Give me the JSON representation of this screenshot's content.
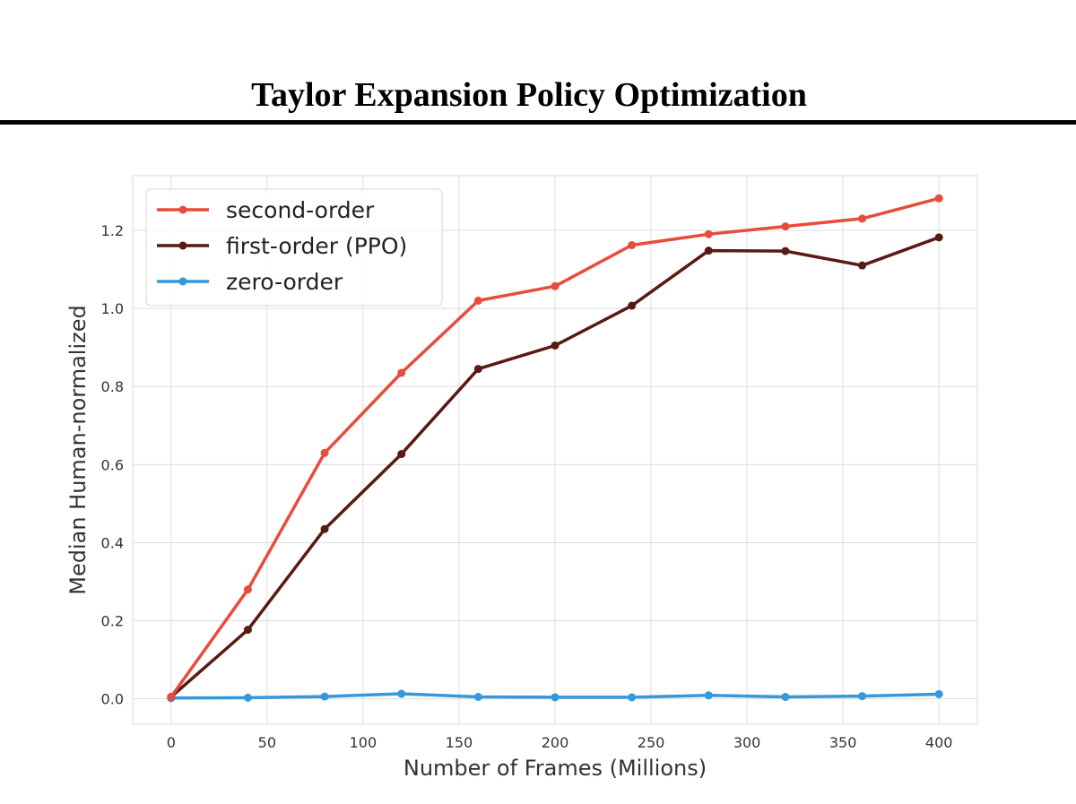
{
  "header": {
    "title": "Taylor Expansion Policy Optimization"
  },
  "chart_data": {
    "type": "line",
    "title": "",
    "xlabel": "Number of Frames (Millions)",
    "ylabel": "Median Human-normalized",
    "x": [
      0,
      40,
      80,
      120,
      160,
      200,
      240,
      280,
      320,
      360,
      400
    ],
    "xlim": [
      -20,
      420
    ],
    "ylim": [
      -0.065,
      1.34
    ],
    "xticks": [
      0,
      50,
      100,
      150,
      200,
      250,
      300,
      350,
      400
    ],
    "xtick_labels": [
      "0",
      "50",
      "100",
      "150",
      "200",
      "250",
      "300",
      "350",
      "400"
    ],
    "yticks": [
      0.0,
      0.2,
      0.4,
      0.6,
      0.8,
      1.0,
      1.2
    ],
    "ytick_labels": [
      "0.0",
      "0.2",
      "0.4",
      "0.6",
      "0.8",
      "1.0",
      "1.2"
    ],
    "grid": true,
    "legend_position": "top-left",
    "series": [
      {
        "name": "second-order",
        "color": "#e74c3c",
        "values": [
          0.005,
          0.28,
          0.63,
          0.835,
          1.02,
          1.057,
          1.162,
          1.19,
          1.21,
          1.23,
          1.282
        ]
      },
      {
        "name": "first-order (PPO)",
        "color": "#5a1a14",
        "values": [
          0.005,
          0.177,
          0.435,
          0.627,
          0.845,
          0.905,
          1.007,
          1.148,
          1.147,
          1.11,
          1.182
        ]
      },
      {
        "name": "zero-order",
        "color": "#3498db",
        "values": [
          0.002,
          0.003,
          0.006,
          0.013,
          0.005,
          0.004,
          0.004,
          0.009,
          0.005,
          0.007,
          0.012
        ]
      }
    ]
  }
}
